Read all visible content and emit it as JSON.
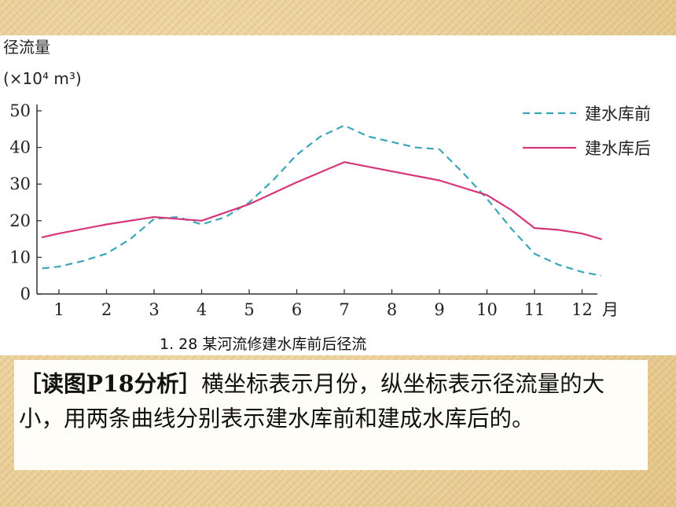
{
  "chart_data": {
    "type": "line",
    "caption": "1. 28  某河流修建水库前后径流",
    "ylabel": "径流量",
    "yunit": "(×10⁴ m³)",
    "xunit": "月",
    "ylim": [
      0,
      50
    ],
    "yticks": [
      "0",
      "10",
      "20",
      "30",
      "40",
      "50"
    ],
    "x": [
      1,
      2,
      3,
      4,
      5,
      6,
      7,
      8,
      9,
      10,
      11,
      12
    ],
    "categories": [
      "1",
      "2",
      "3",
      "4",
      "5",
      "6",
      "7",
      "8",
      "9",
      "10",
      "11",
      "12"
    ],
    "series": [
      {
        "name": "建水库前",
        "style": "dashed",
        "color": "#3aa6b9",
        "x": [
          0.65,
          1,
          1.5,
          2,
          2.5,
          3,
          3.5,
          4,
          4.5,
          5,
          5.5,
          6,
          6.5,
          7,
          7.5,
          8,
          8.5,
          9,
          9.5,
          10,
          10.5,
          11,
          11.5,
          12,
          12.4
        ],
        "values": [
          7,
          7.5,
          9,
          11,
          15,
          20.5,
          21,
          19,
          21,
          25,
          31,
          38,
          43,
          46,
          43,
          41.5,
          40,
          39.5,
          33,
          26,
          18,
          11,
          8,
          6,
          5
        ]
      },
      {
        "name": "建水库后",
        "style": "solid",
        "color": "#d6357a",
        "x": [
          0.65,
          1,
          2,
          3,
          4,
          5,
          6,
          7,
          8,
          9,
          10,
          10.5,
          11,
          11.5,
          12,
          12.4
        ],
        "values": [
          15.5,
          16.5,
          19,
          21,
          20,
          24.5,
          30.5,
          36,
          33.5,
          31,
          27,
          23,
          18,
          17.5,
          16.5,
          15
        ]
      }
    ],
    "legend": "top-right",
    "grid": false
  },
  "explanation": {
    "lead": "［读图P18分析］",
    "body": "横坐标表示月份，纵坐标表示径流量的大小，用两条曲线分别表示建水库前和建成水库后的。"
  }
}
